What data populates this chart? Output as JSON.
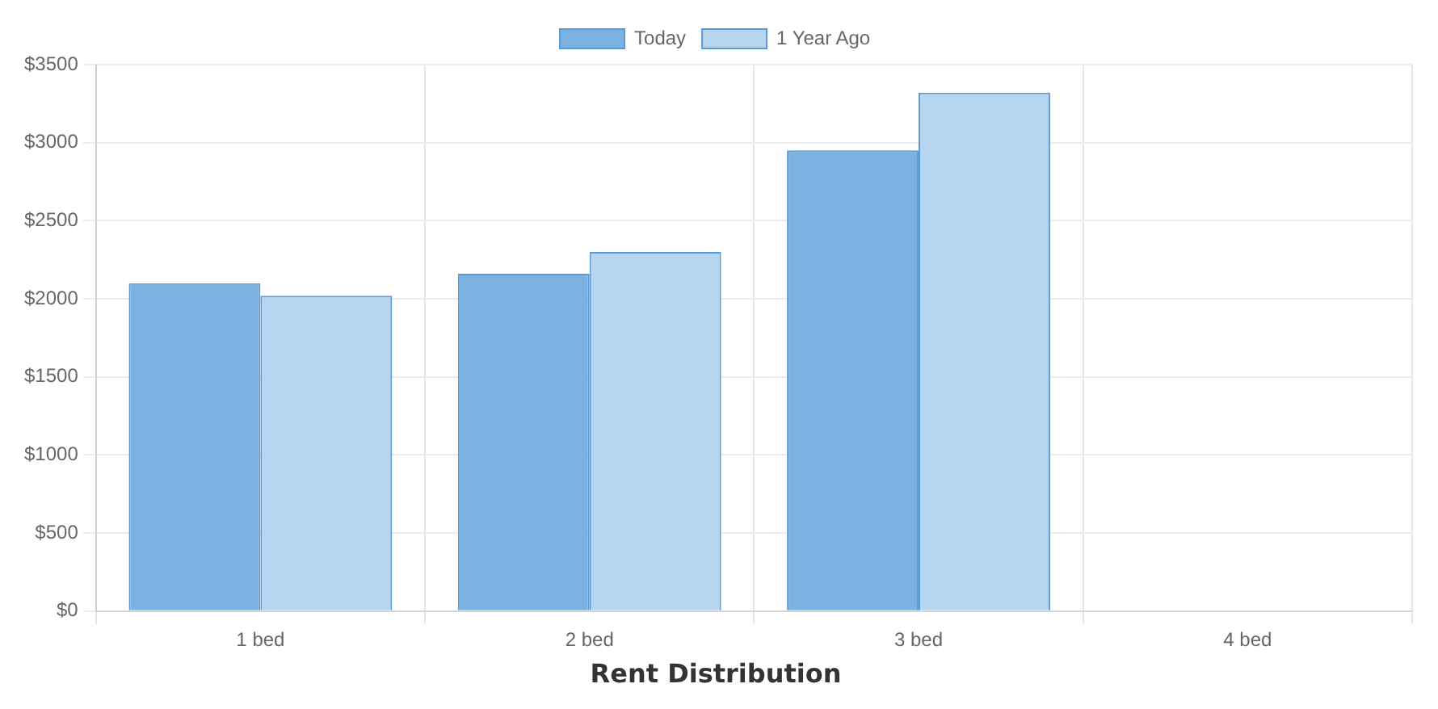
{
  "chart_data": {
    "type": "bar",
    "title": "Rent Distribution",
    "categories": [
      "1 bed",
      "2 bed",
      "3 bed",
      "4 bed"
    ],
    "series": [
      {
        "name": "Today",
        "color": "#7ab3e1",
        "values": [
          2100,
          2160,
          2950,
          null
        ]
      },
      {
        "name": "1 Year Ago",
        "color": "#b5d5f0",
        "values": [
          2020,
          2300,
          3320,
          null
        ]
      }
    ],
    "ylim": [
      0,
      3500
    ],
    "yticks": [
      {
        "value": 0,
        "label": "$0"
      },
      {
        "value": 500,
        "label": "$500"
      },
      {
        "value": 1000,
        "label": "$1000"
      },
      {
        "value": 1500,
        "label": "$1500"
      },
      {
        "value": 2000,
        "label": "$2000"
      },
      {
        "value": 2500,
        "label": "$2500"
      },
      {
        "value": 3000,
        "label": "$3000"
      },
      {
        "value": 3500,
        "label": "$3500"
      }
    ],
    "grid": true,
    "legend": "top"
  }
}
